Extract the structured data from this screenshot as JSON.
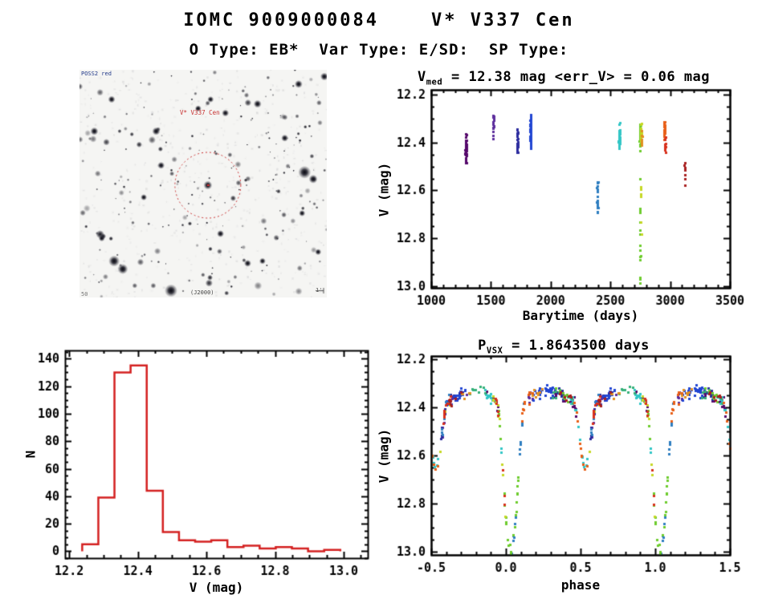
{
  "header": {
    "title": "IOMC 9009000084    V* V337 Cen",
    "subtitle": "O Type: EB*  Var Type: E/SD:  SP Type:"
  },
  "finding_chart": {
    "target_label": "V* V337 Cen",
    "corner_top_left": "POSS2 red",
    "corner_bottom_center": "(J2000)",
    "corner_bottom_left": "50",
    "scale_label": "1'",
    "circle_color": "#cc3333",
    "background": "#f5f5f3",
    "stars": {
      "seed": 42,
      "random_count": 240,
      "highlights": [
        [
          0.31,
          0.27,
          5
        ],
        [
          0.59,
          0.19,
          4.5
        ],
        [
          0.72,
          0.15,
          5
        ],
        [
          0.91,
          0.45,
          8
        ],
        [
          0.945,
          0.48,
          5.5
        ],
        [
          0.14,
          0.84,
          7
        ],
        [
          0.175,
          0.875,
          6.5
        ],
        [
          0.37,
          0.97,
          8
        ],
        [
          0.57,
          0.72,
          4.5
        ],
        [
          0.06,
          0.27,
          5
        ],
        [
          0.68,
          0.85,
          4.5
        ],
        [
          0.74,
          0.84,
          4
        ],
        [
          0.09,
          0.74,
          4
        ],
        [
          0.48,
          0.17,
          4
        ],
        [
          0.53,
          0.13,
          4
        ],
        [
          0.886,
          0.063,
          5
        ],
        [
          0.99,
          0.03,
          5
        ],
        [
          0.519,
          0.507,
          5.5
        ],
        [
          0.26,
          0.56,
          4
        ],
        [
          0.83,
          0.3,
          4.5
        ],
        [
          0.9,
          0.63,
          4
        ],
        [
          0.33,
          0.42,
          4.5
        ],
        [
          0.13,
          0.13,
          4.5
        ],
        [
          0.965,
          0.8,
          4
        ]
      ],
      "target": {
        "fx": 0.519,
        "fy": 0.507,
        "circle_radius": 41
      }
    }
  },
  "chart_data": [
    {
      "type": "scatter",
      "name": "light_curve",
      "title_parts": {
        "pre": "V",
        "sub": "med",
        "rest": " = 12.38 mag <err_V> = 0.06 mag"
      },
      "xlabel": "Barytime (days)",
      "ylabel": "V (mag)",
      "xlim": [
        1000,
        3500
      ],
      "ylim": [
        12.18,
        13.007
      ],
      "xticks": [
        1000,
        1500,
        2000,
        2500,
        3000,
        3500
      ],
      "xtick_labels": [
        "1000",
        "1500",
        "2000",
        "2500",
        "3000",
        "3500"
      ],
      "yticks": [
        12.2,
        12.4,
        12.6,
        12.8,
        13.0
      ],
      "ytick_labels": [
        "12.2",
        "12.4",
        "12.6",
        "12.8",
        "13.0"
      ],
      "x_minor": 100,
      "y_minor": 0.05,
      "y_inverted_mag_axis": true,
      "median_v_mag": 12.38,
      "mean_err_v": 0.06,
      "clusters": [
        {
          "t": 1290,
          "dt": 9,
          "v": 12.43,
          "dv": 0.085,
          "n": 48,
          "color": "#55086b"
        },
        {
          "t": 1520,
          "dt": 7,
          "v": 12.34,
          "dv": 0.075,
          "n": 16,
          "color": "#5c2d9c"
        },
        {
          "t": 1723,
          "dt": 8,
          "v": 12.4,
          "dv": 0.095,
          "n": 24,
          "color": "#2b2b9e"
        },
        {
          "t": 1832,
          "dt": 5,
          "v": 12.35,
          "dv": 0.105,
          "n": 70,
          "color": "#2145d2"
        },
        {
          "t": 2390,
          "dt": 7,
          "v": 12.63,
          "dv": 0.105,
          "n": 20,
          "color": "#2e7ec0"
        },
        {
          "t": 2573,
          "dt": 9,
          "v": 12.38,
          "dv": 0.08,
          "n": 45,
          "color": "#32c6c6"
        },
        {
          "t": 2748,
          "dt": 8,
          "v": 12.37,
          "dv": 0.08,
          "n": 60,
          "color": "#6ecc2e",
          "tail": {
            "n": 16,
            "v0": 12.5,
            "v1": 12.99
          }
        },
        {
          "t": 2757,
          "dt": 6,
          "v": 12.36,
          "dv": 0.06,
          "n": 30,
          "color": "#c6d825",
          "tail": {
            "n": 6,
            "v0": 12.5,
            "v1": 12.8
          }
        },
        {
          "t": 2762,
          "dt": 4,
          "v": 12.38,
          "dv": 0.05,
          "n": 10,
          "color": "#e09020"
        },
        {
          "t": 2952,
          "dt": 5,
          "v": 12.35,
          "dv": 0.055,
          "n": 26,
          "color": "#e85e16"
        },
        {
          "t": 2958,
          "dt": 3,
          "v": 12.41,
          "dv": 0.045,
          "n": 14,
          "color": "#d8301c"
        },
        {
          "t": 3122,
          "dt": 4,
          "v": 12.51,
          "dv": 0.09,
          "n": 11,
          "color": "#a81f1f"
        }
      ]
    },
    {
      "type": "bar",
      "name": "v_histogram",
      "xlabel": "V (mag)",
      "ylabel": "N",
      "xlim": [
        12.188,
        13.07
      ],
      "ylim": [
        -5,
        146
      ],
      "xticks": [
        12.2,
        12.4,
        12.6,
        12.8,
        13.0
      ],
      "xtick_labels": [
        "12.2",
        "12.4",
        "12.6",
        "12.8",
        "13.0"
      ],
      "yticks": [
        0,
        20,
        40,
        60,
        80,
        100,
        120,
        140
      ],
      "ytick_labels": [
        "0",
        "20",
        "40",
        "60",
        "80",
        "100",
        "120",
        "140"
      ],
      "x_minor": 0.05,
      "y_minor": 5,
      "bar_color": "#d42020",
      "bin_start": 12.238,
      "bin_width": 0.047,
      "values": [
        5,
        39,
        130,
        135,
        44,
        14,
        8,
        7,
        8,
        3,
        4,
        2,
        3,
        2,
        0,
        1
      ]
    },
    {
      "type": "scatter",
      "name": "phase_folded_curve",
      "title_parts": {
        "pre": "P",
        "sub": "VSX",
        "rest": " = 1.8643500 days"
      },
      "period_days": 1.86435,
      "xlabel": "phase",
      "ylabel": "V (mag)",
      "xlim": [
        -0.5,
        1.5
      ],
      "ylim": [
        12.187,
        13.013
      ],
      "xticks": [
        -0.5,
        0.0,
        0.5,
        1.0,
        1.5
      ],
      "xtick_labels": [
        "-0.5",
        "0.0",
        "0.5",
        "1.0",
        "1.5"
      ],
      "yticks": [
        12.2,
        12.4,
        12.6,
        12.8,
        13.0
      ],
      "ytick_labels": [
        "12.2",
        "12.4",
        "12.6",
        "12.8",
        "13.0"
      ],
      "x_minor": 0.1,
      "y_minor": 0.05,
      "y_inverted_mag_axis": true,
      "model": {
        "baseline": 12.36,
        "ellipsoidal_amp": 0.03,
        "primary_eclipse": {
          "center": 0.03,
          "half_width": 0.1,
          "depth": 0.62
        },
        "secondary_eclipse": {
          "center": 0.53,
          "half_width": 0.08,
          "depth": 0.26
        },
        "noise": 0.035,
        "max_mag": 12.995
      },
      "epochs": [
        {
          "color": "#55086b",
          "windows": [
            [
              0.3,
              0.52,
              24
            ],
            [
              0.86,
              0.98,
              10
            ]
          ]
        },
        {
          "color": "#5c2d9c",
          "windows": [
            [
              0.1,
              0.18,
              7
            ],
            [
              0.55,
              0.75,
              14
            ]
          ]
        },
        {
          "color": "#2b2b9e",
          "windows": [
            [
              0.32,
              0.4,
              8
            ],
            [
              0.55,
              0.72,
              16
            ]
          ]
        },
        {
          "color": "#2145d2",
          "windows": [
            [
              0.18,
              0.33,
              28
            ],
            [
              0.6,
              0.73,
              22
            ]
          ]
        },
        {
          "color": "#2e7ec0",
          "windows": [
            [
              0.02,
              0.13,
              16
            ],
            [
              0.55,
              0.63,
              8
            ]
          ]
        },
        {
          "color": "#32c6c6",
          "windows": [
            [
              0.4,
              0.55,
              18
            ],
            [
              0.85,
              1.0,
              14
            ]
          ]
        },
        {
          "color": "#35b07a",
          "windows": [
            [
              0.3,
              0.45,
              12
            ],
            [
              0.75,
              0.86,
              8
            ]
          ]
        },
        {
          "color": "#6ecc2e",
          "windows": [
            [
              0.94,
              1.08,
              26
            ],
            [
              0.3,
              0.42,
              10
            ]
          ]
        },
        {
          "color": "#c6d825",
          "windows": [
            [
              0.55,
              0.63,
              6
            ],
            [
              0.9,
              1.0,
              10
            ]
          ]
        },
        {
          "color": "#e09020",
          "windows": [
            [
              0.17,
              0.25,
              8
            ],
            [
              0.7,
              0.78,
              6
            ]
          ]
        },
        {
          "color": "#e85e16",
          "windows": [
            [
              0.1,
              0.2,
              10
            ],
            [
              0.45,
              0.55,
              10
            ]
          ]
        },
        {
          "color": "#d8301c",
          "windows": [
            [
              0.52,
              0.63,
              10
            ],
            [
              0.93,
              1.0,
              8
            ]
          ]
        },
        {
          "color": "#a81f1f",
          "windows": [
            [
              0.35,
              0.45,
              7
            ],
            [
              0.6,
              0.7,
              6
            ]
          ]
        }
      ]
    }
  ]
}
